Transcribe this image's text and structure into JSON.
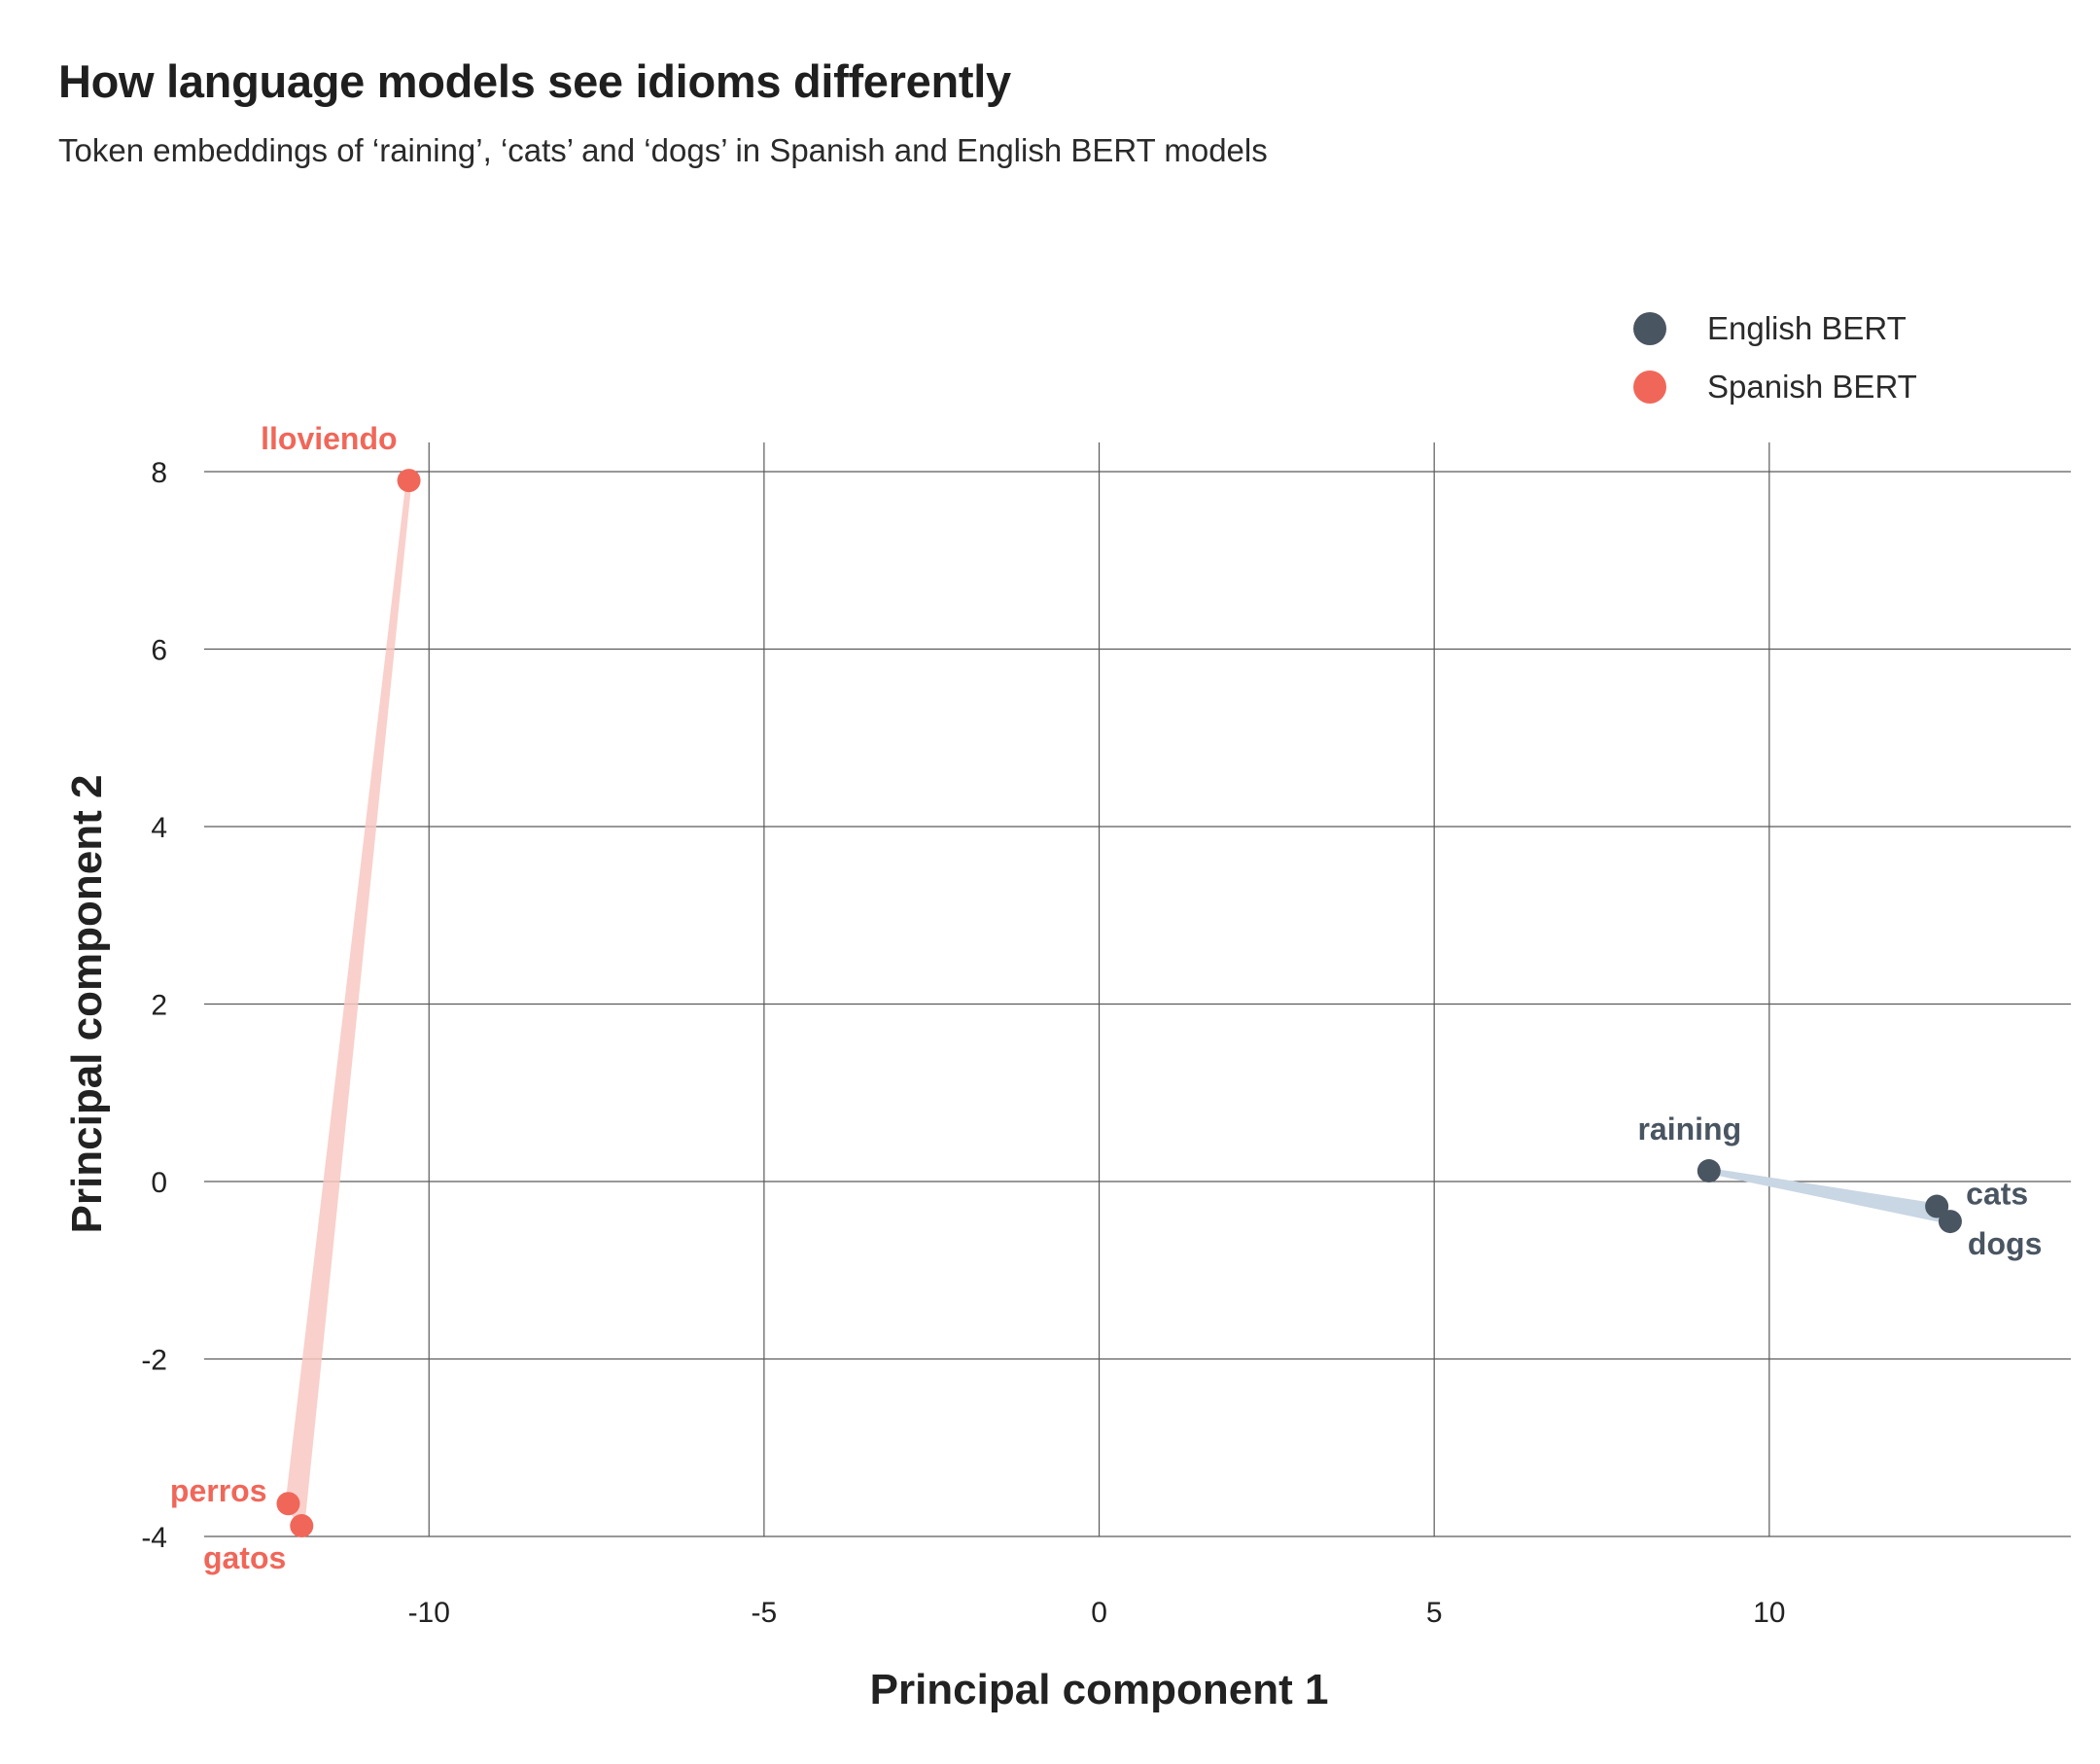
{
  "title": "How language models see idioms differently",
  "subtitle": "Token embeddings of ‘raining’, ‘cats’ and ‘dogs’ in Spanish and English BERT models",
  "chart_data": {
    "type": "scatter",
    "xlabel": "Principal component 1",
    "ylabel": "Principal component 2",
    "xlim": [
      -13.5,
      14.5
    ],
    "ylim": [
      -4,
      8
    ],
    "xticks": [
      -10,
      -5,
      0,
      5,
      10
    ],
    "yticks": [
      -4,
      -2,
      0,
      2,
      4,
      6,
      8
    ],
    "grid": true,
    "legend_position": "top-right",
    "series": [
      {
        "name": "English BERT",
        "color": "#4a5562",
        "band_color": "#c9d6e3",
        "points": [
          {
            "label": "raining",
            "x": 9.1,
            "y": 0.12
          },
          {
            "label": "cats",
            "x": 12.5,
            "y": -0.28
          },
          {
            "label": "dogs",
            "x": 12.7,
            "y": -0.45
          }
        ]
      },
      {
        "name": "Spanish BERT",
        "color": "#f0675a",
        "band_color": "#f9c8c2",
        "points": [
          {
            "label": "lloviendo",
            "x": -10.3,
            "y": 7.9
          },
          {
            "label": "perros",
            "x": -12.1,
            "y": -3.63
          },
          {
            "label": "gatos",
            "x": -11.9,
            "y": -3.88
          }
        ]
      }
    ]
  }
}
